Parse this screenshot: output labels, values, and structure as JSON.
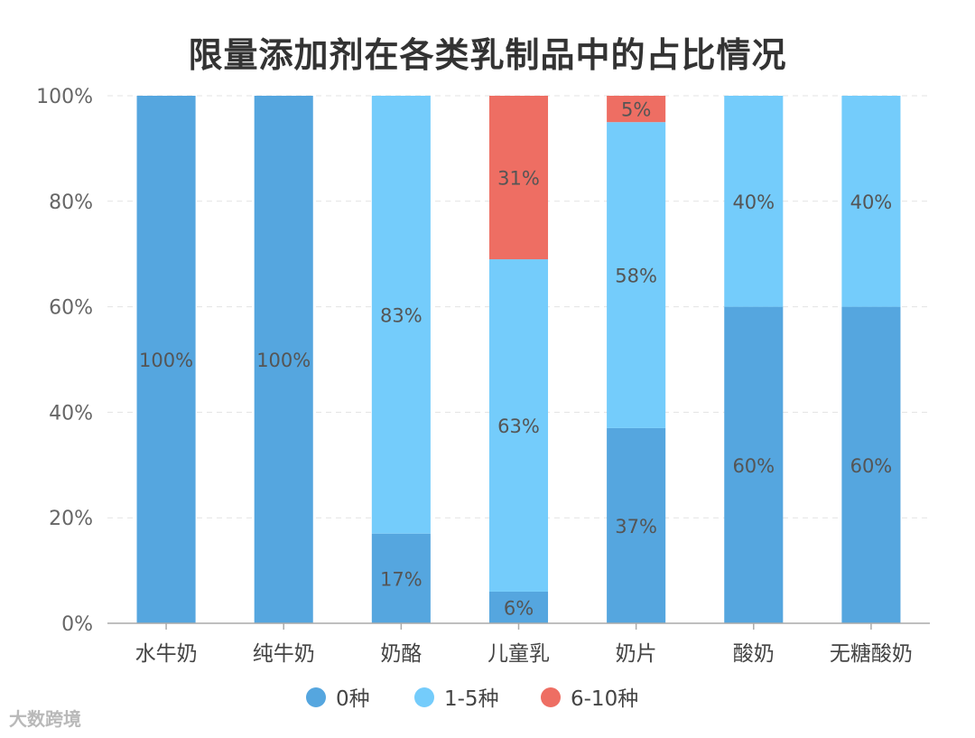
{
  "chart_data": {
    "type": "bar",
    "stacked": true,
    "title": "限量添加剂在各类乳制品中的占比情况",
    "categories": [
      "水牛奶",
      "纯牛奶",
      "奶酪",
      "儿童乳",
      "奶片",
      "酸奶",
      "无糖酸奶"
    ],
    "series": [
      {
        "name": "0种",
        "color": "#55A6DF",
        "values": [
          100,
          100,
          17,
          6,
          37,
          60,
          60
        ]
      },
      {
        "name": "1-5种",
        "color": "#74CCFB",
        "values": [
          0,
          0,
          83,
          63,
          58,
          40,
          40
        ]
      },
      {
        "name": "6-10种",
        "color": "#EE6E63",
        "values": [
          0,
          0,
          0,
          31,
          5,
          0,
          0
        ]
      }
    ],
    "ylim": [
      0,
      100
    ],
    "yticks": [
      "0%",
      "20%",
      "40%",
      "60%",
      "80%",
      "100%"
    ],
    "value_suffix": "%",
    "grid": true,
    "legend_position": "bottom"
  },
  "watermark": "大数跨境"
}
